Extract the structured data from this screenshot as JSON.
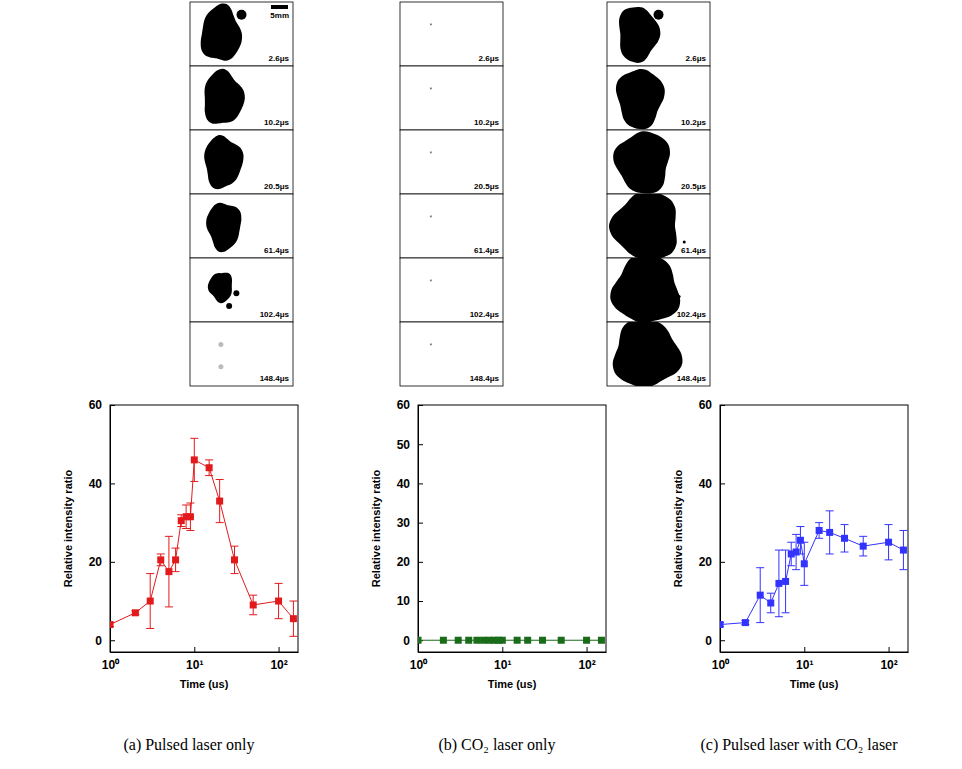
{
  "images": {
    "scale_bar": "5mm",
    "panels": [
      {
        "timestamps": [
          "2.6μs",
          "10.2μs",
          "20.5μs",
          "61.4μs",
          "102.4μs",
          "148.4μs"
        ]
      },
      {
        "timestamps": [
          "2.6μs",
          "10.2μs",
          "20.5μs",
          "61.4μs",
          "102.4μs",
          "148.4μs"
        ]
      },
      {
        "timestamps": [
          "2.6μs",
          "10.2μs",
          "20.5μs",
          "61.4μs",
          "102.4μs",
          "148.4μs"
        ]
      }
    ]
  },
  "chart_data": [
    {
      "type": "line",
      "title": "(a) Pulsed laser only",
      "x_label": "Time (us)",
      "y_label": "Relative intensity ratio",
      "log": "x",
      "xlim": [
        1,
        170
      ],
      "xticks": [
        {
          "value": 1,
          "label": "10⁰"
        },
        {
          "value": 10,
          "label": "10¹"
        },
        {
          "value": 100,
          "label": "10²"
        }
      ],
      "ylim": [
        -3,
        60
      ],
      "yticks": [
        0,
        20,
        40,
        60
      ],
      "x": [
        1,
        2,
        3,
        4,
        5,
        6,
        7,
        8,
        9,
        10,
        15,
        20,
        30,
        50,
        100,
        150
      ],
      "series": [
        {
          "color": "#e31a1c",
          "marker": "square",
          "line_style": "solid",
          "values": [
            4,
            7,
            10,
            20.5,
            17.5,
            20.5,
            30.5,
            31.5,
            31.5,
            46,
            44,
            35.5,
            20.5,
            9,
            10,
            5.5
          ],
          "errors": [
            0.5,
            0.5,
            7,
            1.5,
            9,
            3,
            1.5,
            3,
            3.5,
            5.5,
            2,
            5.5,
            3.5,
            2.5,
            4.5,
            4.5
          ]
        }
      ]
    },
    {
      "type": "line",
      "title": "(b) CO₂ laser only",
      "x_label": "Time (us)",
      "y_label": "Relative intensity ratio",
      "log": "x",
      "xlim": [
        1,
        170
      ],
      "xticks": [
        {
          "value": 1,
          "label": "10⁰"
        },
        {
          "value": 10,
          "label": "10¹"
        },
        {
          "value": 100,
          "label": "10²"
        }
      ],
      "ylim": [
        -3,
        60
      ],
      "yticks": [
        0,
        10,
        20,
        30,
        40,
        50,
        60
      ],
      "x": [
        1,
        2,
        3,
        4,
        5,
        6,
        7,
        8,
        9,
        10,
        15,
        20,
        30,
        50,
        100,
        150
      ],
      "series": [
        {
          "color": "#1a6b1a",
          "marker": "square",
          "line_style": "solid",
          "values": [
            0,
            0,
            0,
            0,
            0,
            0,
            0,
            0,
            0,
            0,
            0,
            0,
            0,
            0,
            0,
            0
          ]
        }
      ]
    },
    {
      "type": "line",
      "title": "(c) Pulsed laser with CO₂ laser",
      "x_label": "Time (us)",
      "y_label": "Relative intensity ratio",
      "log": "x",
      "xlim": [
        1,
        170
      ],
      "xticks": [
        {
          "value": 1,
          "label": "10⁰"
        },
        {
          "value": 10,
          "label": "10¹"
        },
        {
          "value": 100,
          "label": "10²"
        }
      ],
      "ylim": [
        -3,
        60
      ],
      "yticks": [
        0,
        20,
        40,
        60
      ],
      "x": [
        1,
        2,
        3,
        4,
        5,
        6,
        7,
        8,
        9,
        10,
        15,
        20,
        30,
        50,
        100,
        150
      ],
      "series": [
        {
          "color": "#3333ff",
          "marker": "square",
          "line_style": "solid",
          "values": [
            4,
            4.5,
            11.5,
            9.5,
            14.5,
            15,
            22,
            22.5,
            25.5,
            19.5,
            28,
            27.5,
            26,
            24,
            25,
            23
          ],
          "errors": [
            0.5,
            0.5,
            7,
            2.5,
            8.5,
            8,
            3,
            4.5,
            3.5,
            5.5,
            2,
            5.5,
            3.5,
            2.5,
            4.5,
            5
          ]
        }
      ]
    }
  ]
}
